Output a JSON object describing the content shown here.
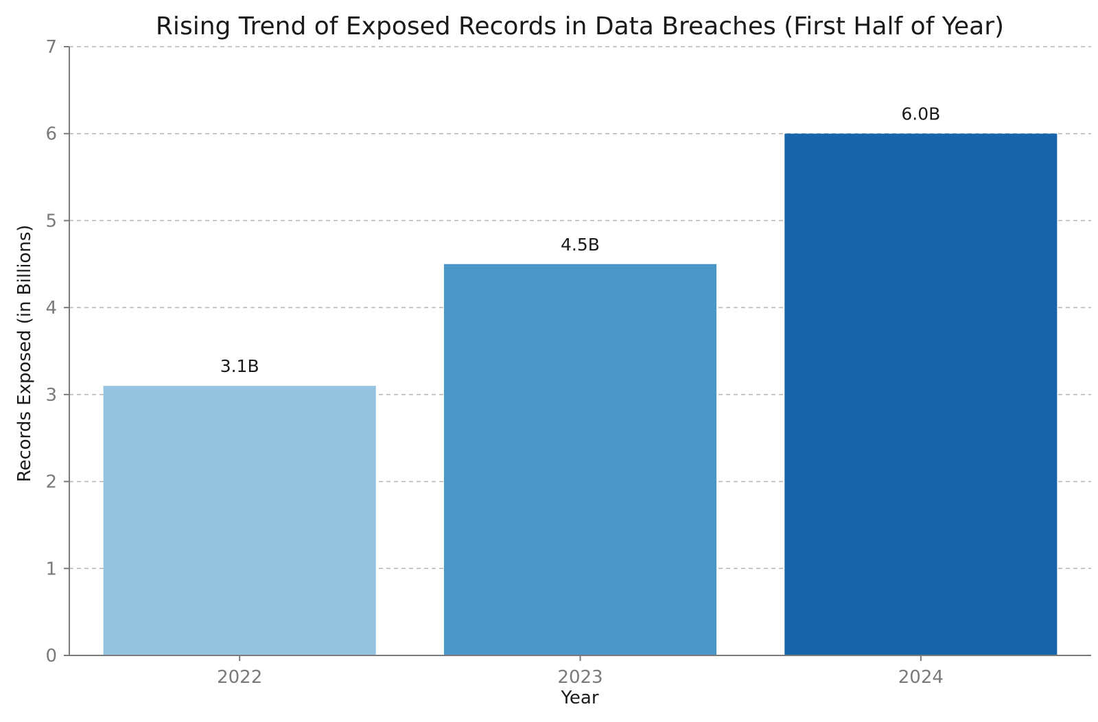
{
  "chart_data": {
    "type": "bar",
    "title": "Rising Trend of Exposed Records in Data Breaches (First Half of Year)",
    "xlabel": "Year",
    "ylabel": "Records Exposed (in Billions)",
    "categories": [
      "2022",
      "2023",
      "2024"
    ],
    "values": [
      3.1,
      4.5,
      6.0
    ],
    "value_labels": [
      "3.1B",
      "4.5B",
      "6.0B"
    ],
    "colors": [
      "#96c3e0",
      "#4b98c8",
      "#1864ab"
    ],
    "ylim": [
      0,
      7
    ],
    "yticks": [
      0,
      1,
      2,
      3,
      4,
      5,
      6,
      7
    ],
    "grid": true,
    "legend": "none"
  }
}
